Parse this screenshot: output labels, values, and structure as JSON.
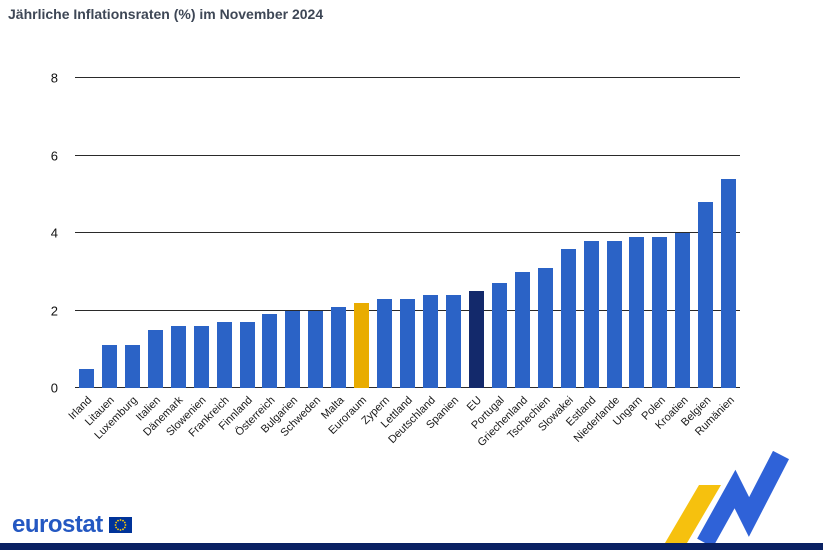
{
  "chart_data": {
    "type": "bar",
    "title": "Jährliche Inflationsraten (%) im November 2024",
    "xlabel": "",
    "ylabel": "",
    "ylim": [
      0,
      8
    ],
    "yticks": [
      0,
      2,
      4,
      6,
      8
    ],
    "grid": true,
    "legend": "none",
    "categories": [
      "Irland",
      "Litauen",
      "Luxemburg",
      "Italien",
      "Dänemark",
      "Slowenien",
      "Frankreich",
      "Finnland",
      "Österreich",
      "Bulgarien",
      "Schweden",
      "Malta",
      "Euroraum",
      "Zypern",
      "Lettland",
      "Deutschland",
      "Spanien",
      "EU",
      "Portugal",
      "Griechenland",
      "Tschechien",
      "Slowakei",
      "Estland",
      "Niederlande",
      "Ungarn",
      "Polen",
      "Kroatien",
      "Belgien",
      "Rumänien"
    ],
    "values": [
      0.5,
      1.1,
      1.1,
      1.5,
      1.6,
      1.6,
      1.7,
      1.7,
      1.9,
      2.0,
      2.0,
      2.1,
      2.2,
      2.3,
      2.3,
      2.4,
      2.4,
      2.5,
      2.7,
      3.0,
      3.1,
      3.6,
      3.8,
      3.8,
      3.9,
      3.9,
      4.0,
      4.8,
      5.4
    ],
    "highlight": {
      "euro_area_category": "Euroraum",
      "eu_category": "EU"
    }
  },
  "colors": {
    "title": "#3e4756",
    "bar_member_state": "#2b63c6",
    "bar_euro_area": "#e9ac00",
    "bar_eu": "#13296b",
    "gridline": "#2a2a2a",
    "axis_text": "#111111"
  },
  "footer": {
    "wordmark": "eurostat",
    "wordmark_color": "#2458c2",
    "flag_blue": "#003399",
    "flag_star_yellow": "#ffcc00",
    "strip_color": "#0a2163",
    "ribbon_yellow": "#f6c10e",
    "ribbon_blue": "#2f62d8"
  }
}
